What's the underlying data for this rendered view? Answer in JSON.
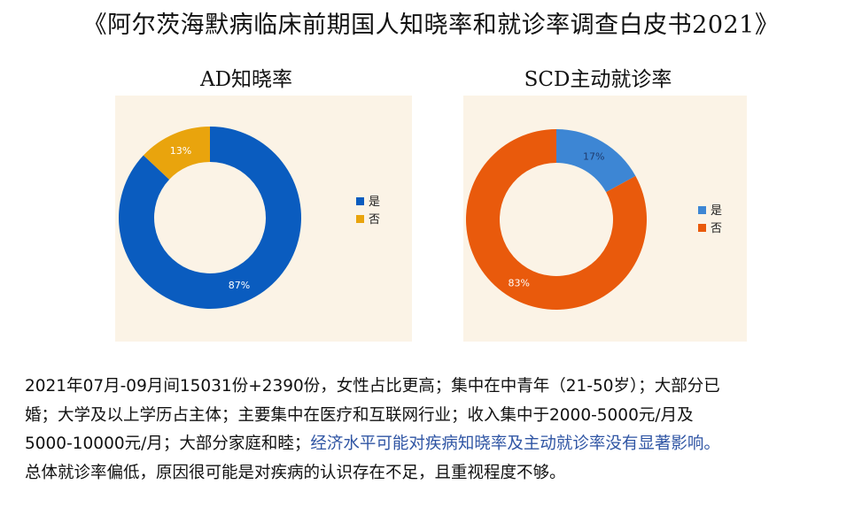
{
  "title": "《阿尔茨海默病临床前期国人知晓率和就诊率调查白皮书2021》",
  "chart_data": [
    {
      "type": "pie",
      "title": "AD知晓率",
      "categories": [
        "是",
        "否"
      ],
      "values": [
        87,
        13
      ],
      "labels": [
        "87%",
        "13%"
      ],
      "colors": [
        "#0a5cbf",
        "#e9a40d"
      ],
      "legend": "right"
    },
    {
      "type": "pie",
      "title": "SCD主动就诊率",
      "categories": [
        "是",
        "否"
      ],
      "values": [
        17,
        83
      ],
      "labels": [
        "17%",
        "83%"
      ],
      "colors": [
        "#3d86d4",
        "#e95a0c"
      ],
      "legend": "right"
    }
  ],
  "text": {
    "line1": "2021年07月-09月间15031份+2390份，女性占比更高；集中在中青年（21-50岁）；大部分已",
    "line2": "婚；大学及以上学历占主体；主要集中在医疗和互联网行业；收入集中于2000-5000元/月及",
    "line3_black": "5000-10000元/月；大部分家庭和睦；",
    "line3_blue": "经济水平可能对疾病知晓率及主动就诊率没有显著影响。",
    "line4": "总体就诊率偏低，原因很可能是对疾病的认识存在不足，且重视程度不够。"
  }
}
